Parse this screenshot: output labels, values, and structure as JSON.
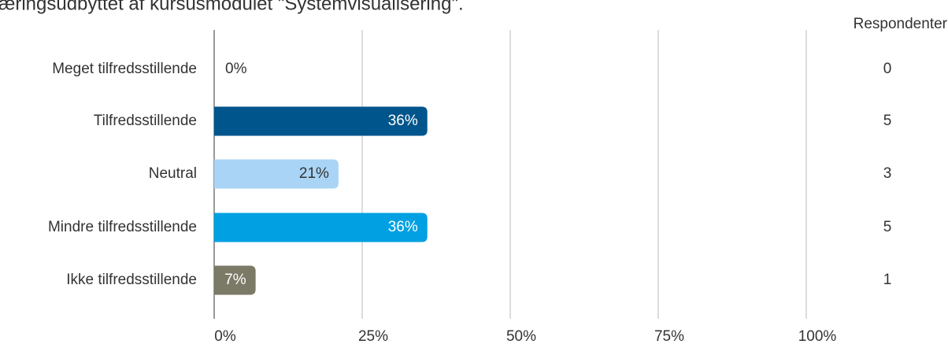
{
  "chart_data": {
    "type": "hbar",
    "title": "æringsudbyttet af kursusmodulet \"Systemvisualisering\".",
    "categories": [
      "Meget tilfredsstillende",
      "Tilfredsstillende",
      "Neutral",
      "Mindre tilfredsstillende",
      "Ikke tilfredsstillende"
    ],
    "values": [
      0,
      36,
      21,
      36,
      7
    ],
    "value_labels": [
      "0%",
      "36%",
      "21%",
      "36%",
      "7%"
    ],
    "colors": [
      "#00558c",
      "#00558c",
      "#a9d4f5",
      "#00a0e2",
      "#7b7a66"
    ],
    "xlim": [
      0,
      100
    ],
    "xticks": [
      {
        "value": 0,
        "label": "0%"
      },
      {
        "value": 25,
        "label": "25%"
      },
      {
        "value": 50,
        "label": "50%"
      },
      {
        "value": 75,
        "label": "75%"
      },
      {
        "value": 100,
        "label": "100%"
      }
    ],
    "grid": true,
    "respondents": {
      "title": "Respondenter",
      "values": [
        0,
        5,
        3,
        5,
        1
      ]
    }
  }
}
